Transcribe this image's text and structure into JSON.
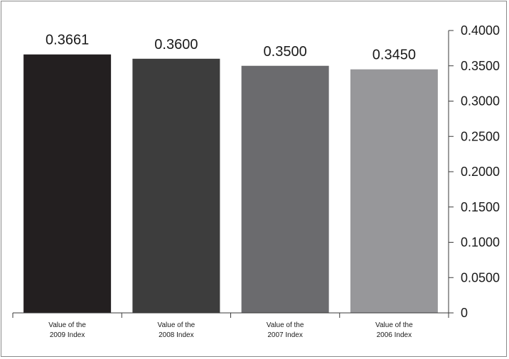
{
  "chart_data": {
    "type": "bar",
    "categories": [
      [
        "Value of the",
        "2009 Index"
      ],
      [
        "Value of the",
        "2008 Index"
      ],
      [
        "Value of the",
        "2007 Index"
      ],
      [
        "Value of the",
        "2006 Index"
      ]
    ],
    "values": [
      0.3661,
      0.36,
      0.35,
      0.345
    ],
    "value_labels": [
      "0.3661",
      "0.3600",
      "0.3500",
      "0.3450"
    ],
    "bar_colors": [
      "#231f20",
      "#3d3d3d",
      "#6b6b6e",
      "#97979a"
    ],
    "y_ticks": [
      0,
      0.05,
      0.1,
      0.15,
      0.2,
      0.25,
      0.3,
      0.35,
      0.4
    ],
    "y_tick_labels": [
      "0",
      "0.0500",
      "0.1000",
      "0.1500",
      "0.2000",
      "0.2500",
      "0.3000",
      "0.3500",
      "0.4000"
    ],
    "ylim": [
      0,
      0.4
    ],
    "y_axis_position": "right",
    "grid": false,
    "legend": "none",
    "title": "",
    "xlabel": "",
    "ylabel": ""
  }
}
